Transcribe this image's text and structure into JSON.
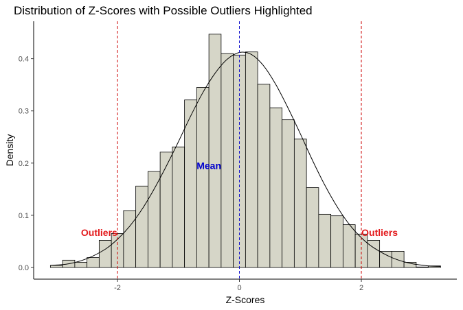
{
  "chart_data": {
    "type": "bar",
    "title": "Distribution of Z-Scores with Possible Outliers Highlighted",
    "xlabel": "Z-Scores",
    "ylabel": "Density",
    "xlim": [
      -3.2,
      3.35
    ],
    "ylim": [
      -0.018,
      0.458
    ],
    "x_ticks": [
      -2,
      0,
      2
    ],
    "x_tick_labels": [
      "-2",
      "0",
      "2"
    ],
    "y_ticks": [
      0.0,
      0.1,
      0.2,
      0.3,
      0.4
    ],
    "y_tick_labels": [
      "0.0",
      "0.1",
      "0.2",
      "0.3",
      "0.4"
    ],
    "grid": false,
    "bar_color": "#d6d6c8",
    "bar_edge_color": "#000000",
    "bin_width": 0.2,
    "bins": [
      {
        "x0": -3.1,
        "x1": -2.9,
        "density": 0.004
      },
      {
        "x0": -2.9,
        "x1": -2.7,
        "density": 0.014
      },
      {
        "x0": -2.7,
        "x1": -2.5,
        "density": 0.01
      },
      {
        "x0": -2.5,
        "x1": -2.3,
        "density": 0.019
      },
      {
        "x0": -2.3,
        "x1": -2.1,
        "density": 0.052
      },
      {
        "x0": -2.1,
        "x1": -1.9,
        "density": 0.065
      },
      {
        "x0": -1.9,
        "x1": -1.7,
        "density": 0.109
      },
      {
        "x0": -1.7,
        "x1": -1.5,
        "density": 0.156
      },
      {
        "x0": -1.5,
        "x1": -1.3,
        "density": 0.184
      },
      {
        "x0": -1.3,
        "x1": -1.1,
        "density": 0.221
      },
      {
        "x0": -1.1,
        "x1": -0.9,
        "density": 0.231
      },
      {
        "x0": -0.9,
        "x1": -0.7,
        "density": 0.321
      },
      {
        "x0": -0.7,
        "x1": -0.5,
        "density": 0.345
      },
      {
        "x0": -0.5,
        "x1": -0.3,
        "density": 0.447
      },
      {
        "x0": -0.3,
        "x1": -0.1,
        "density": 0.41
      },
      {
        "x0": -0.1,
        "x1": 0.1,
        "density": 0.407
      },
      {
        "x0": 0.1,
        "x1": 0.3,
        "density": 0.413
      },
      {
        "x0": 0.3,
        "x1": 0.5,
        "density": 0.351
      },
      {
        "x0": 0.5,
        "x1": 0.7,
        "density": 0.306
      },
      {
        "x0": 0.7,
        "x1": 0.9,
        "density": 0.283
      },
      {
        "x0": 0.9,
        "x1": 1.1,
        "density": 0.246
      },
      {
        "x0": 1.1,
        "x1": 1.3,
        "density": 0.153
      },
      {
        "x0": 1.3,
        "x1": 1.5,
        "density": 0.102
      },
      {
        "x0": 1.5,
        "x1": 1.7,
        "density": 0.099
      },
      {
        "x0": 1.7,
        "x1": 1.9,
        "density": 0.082
      },
      {
        "x0": 1.9,
        "x1": 2.1,
        "density": 0.064
      },
      {
        "x0": 2.1,
        "x1": 2.3,
        "density": 0.052
      },
      {
        "x0": 2.3,
        "x1": 2.5,
        "density": 0.031
      },
      {
        "x0": 2.5,
        "x1": 2.7,
        "density": 0.031
      },
      {
        "x0": 2.7,
        "x1": 2.9,
        "density": 0.01
      },
      {
        "x0": 2.9,
        "x1": 3.1,
        "density": 0.001
      },
      {
        "x0": 3.1,
        "x1": 3.3,
        "density": 0.003
      }
    ],
    "density_curve": {
      "x": [
        -3.1,
        -2.8,
        -2.5,
        -2.2,
        -2.0,
        -1.8,
        -1.6,
        -1.4,
        -1.2,
        -1.0,
        -0.8,
        -0.6,
        -0.4,
        -0.2,
        0.0,
        0.2,
        0.4,
        0.6,
        0.8,
        1.0,
        1.2,
        1.4,
        1.6,
        1.8,
        2.0,
        2.2,
        2.5,
        2.8,
        3.1,
        3.3
      ],
      "y": [
        0.004,
        0.007,
        0.017,
        0.035,
        0.054,
        0.079,
        0.111,
        0.15,
        0.194,
        0.241,
        0.29,
        0.335,
        0.372,
        0.399,
        0.412,
        0.408,
        0.386,
        0.35,
        0.305,
        0.256,
        0.205,
        0.158,
        0.117,
        0.083,
        0.057,
        0.038,
        0.019,
        0.008,
        0.003,
        0.002
      ],
      "color": "#000000"
    },
    "reference_lines": [
      {
        "x": -2,
        "color": "#cc0000",
        "style": "dashed"
      },
      {
        "x": 0,
        "color": "#1010cc",
        "style": "dashed"
      },
      {
        "x": 2,
        "color": "#cc0000",
        "style": "dashed"
      }
    ],
    "annotations": [
      {
        "text": "Outliers",
        "x": -2.3,
        "y": 0.067,
        "color": "#e31a1c"
      },
      {
        "text": "Mean",
        "x": -0.5,
        "y": 0.195,
        "color": "#0000cc"
      },
      {
        "text": "Outliers",
        "x": 2.3,
        "y": 0.067,
        "color": "#e31a1c"
      }
    ]
  }
}
